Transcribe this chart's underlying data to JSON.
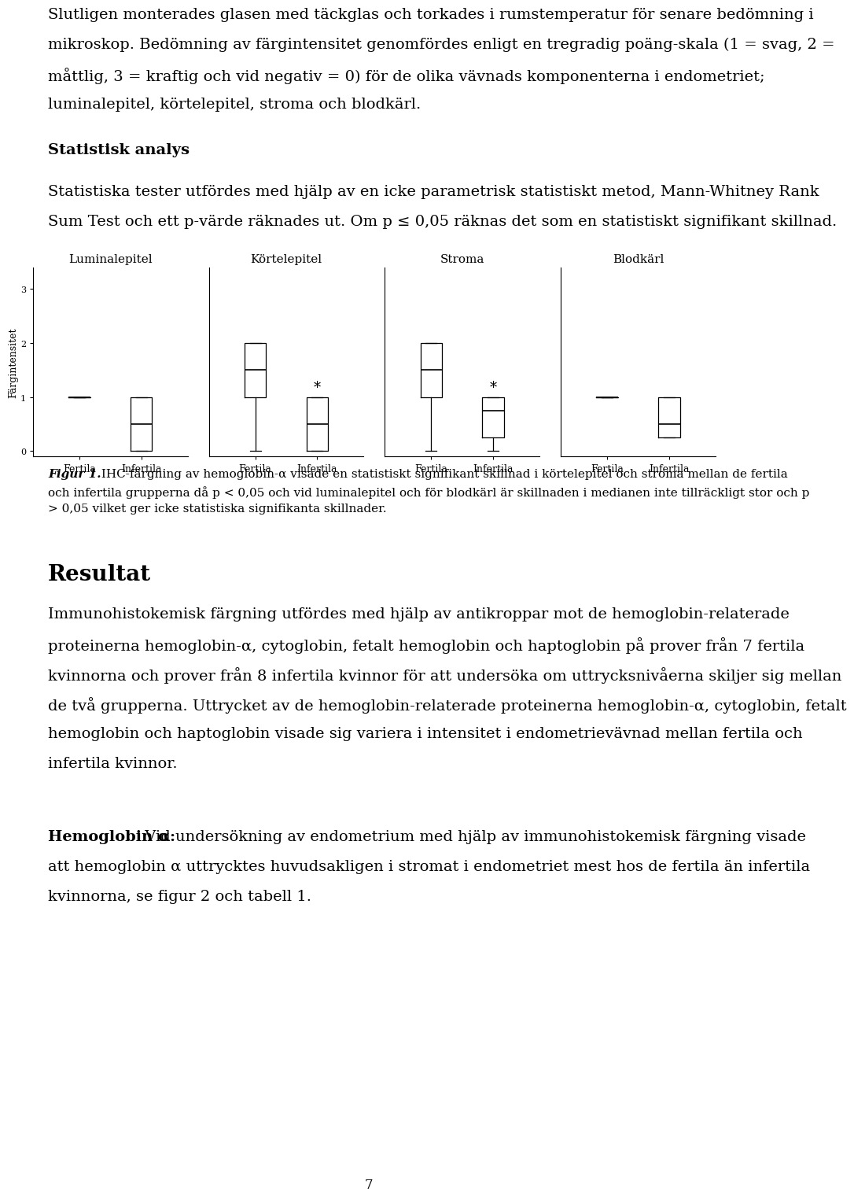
{
  "page_number": "7",
  "background_color": "#ffffff",
  "text_color": "#000000",
  "para1_lines": [
    "Slutligen monterades glasen med täckglas och torkades i rumstemperatur för senare bedömning i",
    "mikroskop. Bedömning av färgintensitet genomfördes enligt en tregradig poäng-skala (1 = svag, 2 =",
    "måttlig, 3 = kraftig och vid negativ = 0) för de olika vävnads komponenterna i endometriet;",
    "luminalepitel, körtelepitel, stroma och blodkärl."
  ],
  "heading1": "Statistisk analys",
  "para2_lines": [
    "Statistiska tester utfördes med hjälp av en icke parametrisk statistiskt metod, Mann-Whitney Rank",
    "Sum Test och ett p-värde räknades ut. Om p ≤ 0,05 räknas det som en statistiskt signifikant skillnad."
  ],
  "figure_titles": [
    "Luminalepitel",
    "Körtelepitel",
    "Stroma",
    "Blodkärl"
  ],
  "figure_ylabel": "Färgintensitet",
  "boxes": {
    "Luminalepitel": {
      "Fertila": {
        "median": 1,
        "q1": 1,
        "q3": 1,
        "whishi": 1,
        "whislo": 1
      },
      "Infertila": {
        "median": 0.5,
        "q1": 0,
        "q3": 1,
        "whishi": 1,
        "whislo": 0
      }
    },
    "Körtelepitel": {
      "Fertila": {
        "median": 1.5,
        "q1": 1,
        "q3": 2,
        "whishi": 2,
        "whislo": 0
      },
      "Infertila": {
        "median": 0.5,
        "q1": 0,
        "q3": 1,
        "whishi": 1,
        "whislo": 0
      }
    },
    "Stroma": {
      "Fertila": {
        "median": 1.5,
        "q1": 1,
        "q3": 2,
        "whishi": 2,
        "whislo": 0
      },
      "Infertila": {
        "median": 0.75,
        "q1": 0.25,
        "q3": 1,
        "whishi": 1,
        "whislo": 0
      }
    },
    "Blodkärl": {
      "Fertila": {
        "median": 1,
        "q1": 1,
        "q3": 1,
        "whishi": 1,
        "whislo": 1
      },
      "Infertila": {
        "median": 0.5,
        "q1": 0.25,
        "q3": 1,
        "whishi": 1,
        "whislo": 0.25
      }
    }
  },
  "significance": {
    "Körtelepitel": true,
    "Stroma": true,
    "Luminalepitel": false,
    "Blodkärl": false
  },
  "caption_bold": "Figur 1.",
  "caption_rest_lines": [
    " IHC-färgning av hemoglobin-α visade en statistiskt signifikant skillnad i körtelepitel och stroma mellan de fertila",
    "och infertila grupperna då p < 0,05 och vid luminalepitel och för blodkärl är skillnaden i medianen inte tillräckligt stor och p",
    "> 0,05 vilket ger icke statistiska signifikanta skillnader."
  ],
  "resultat_heading": "Resultat",
  "resultat_lines": [
    "Immunohistokemisk färgning utfördes med hjälp av antikroppar mot de hemoglobin-relaterade",
    "proteinerna hemoglobin-α, cytoglobin, fetalt hemoglobin och haptoglobin på prover från 7 fertila",
    "kvinnorna och prover från 8 infertila kvinnor för att undersöka om uttrycksnivåerna skiljer sig mellan",
    "de två grupperna. Uttrycket av de hemoglobin-relaterade proteinerna hemoglobin-α, cytoglobin, fetalt",
    "hemoglobin och haptoglobin visade sig variera i intensitet i endometrievävnad mellan fertila och",
    "infertila kvinnor."
  ],
  "hemoglobin_bold": "Hemoglobin α:",
  "hemoglobin_lines": [
    " Vid undersökning av endometrium med hjälp av immunohistokemisk färgning visade",
    "att hemoglobin α uttrycktes huvudsakligen i stromat i endometriet mest hos de fertila än infertila",
    "kvinnorna, se figur 2 och tabell 1."
  ]
}
